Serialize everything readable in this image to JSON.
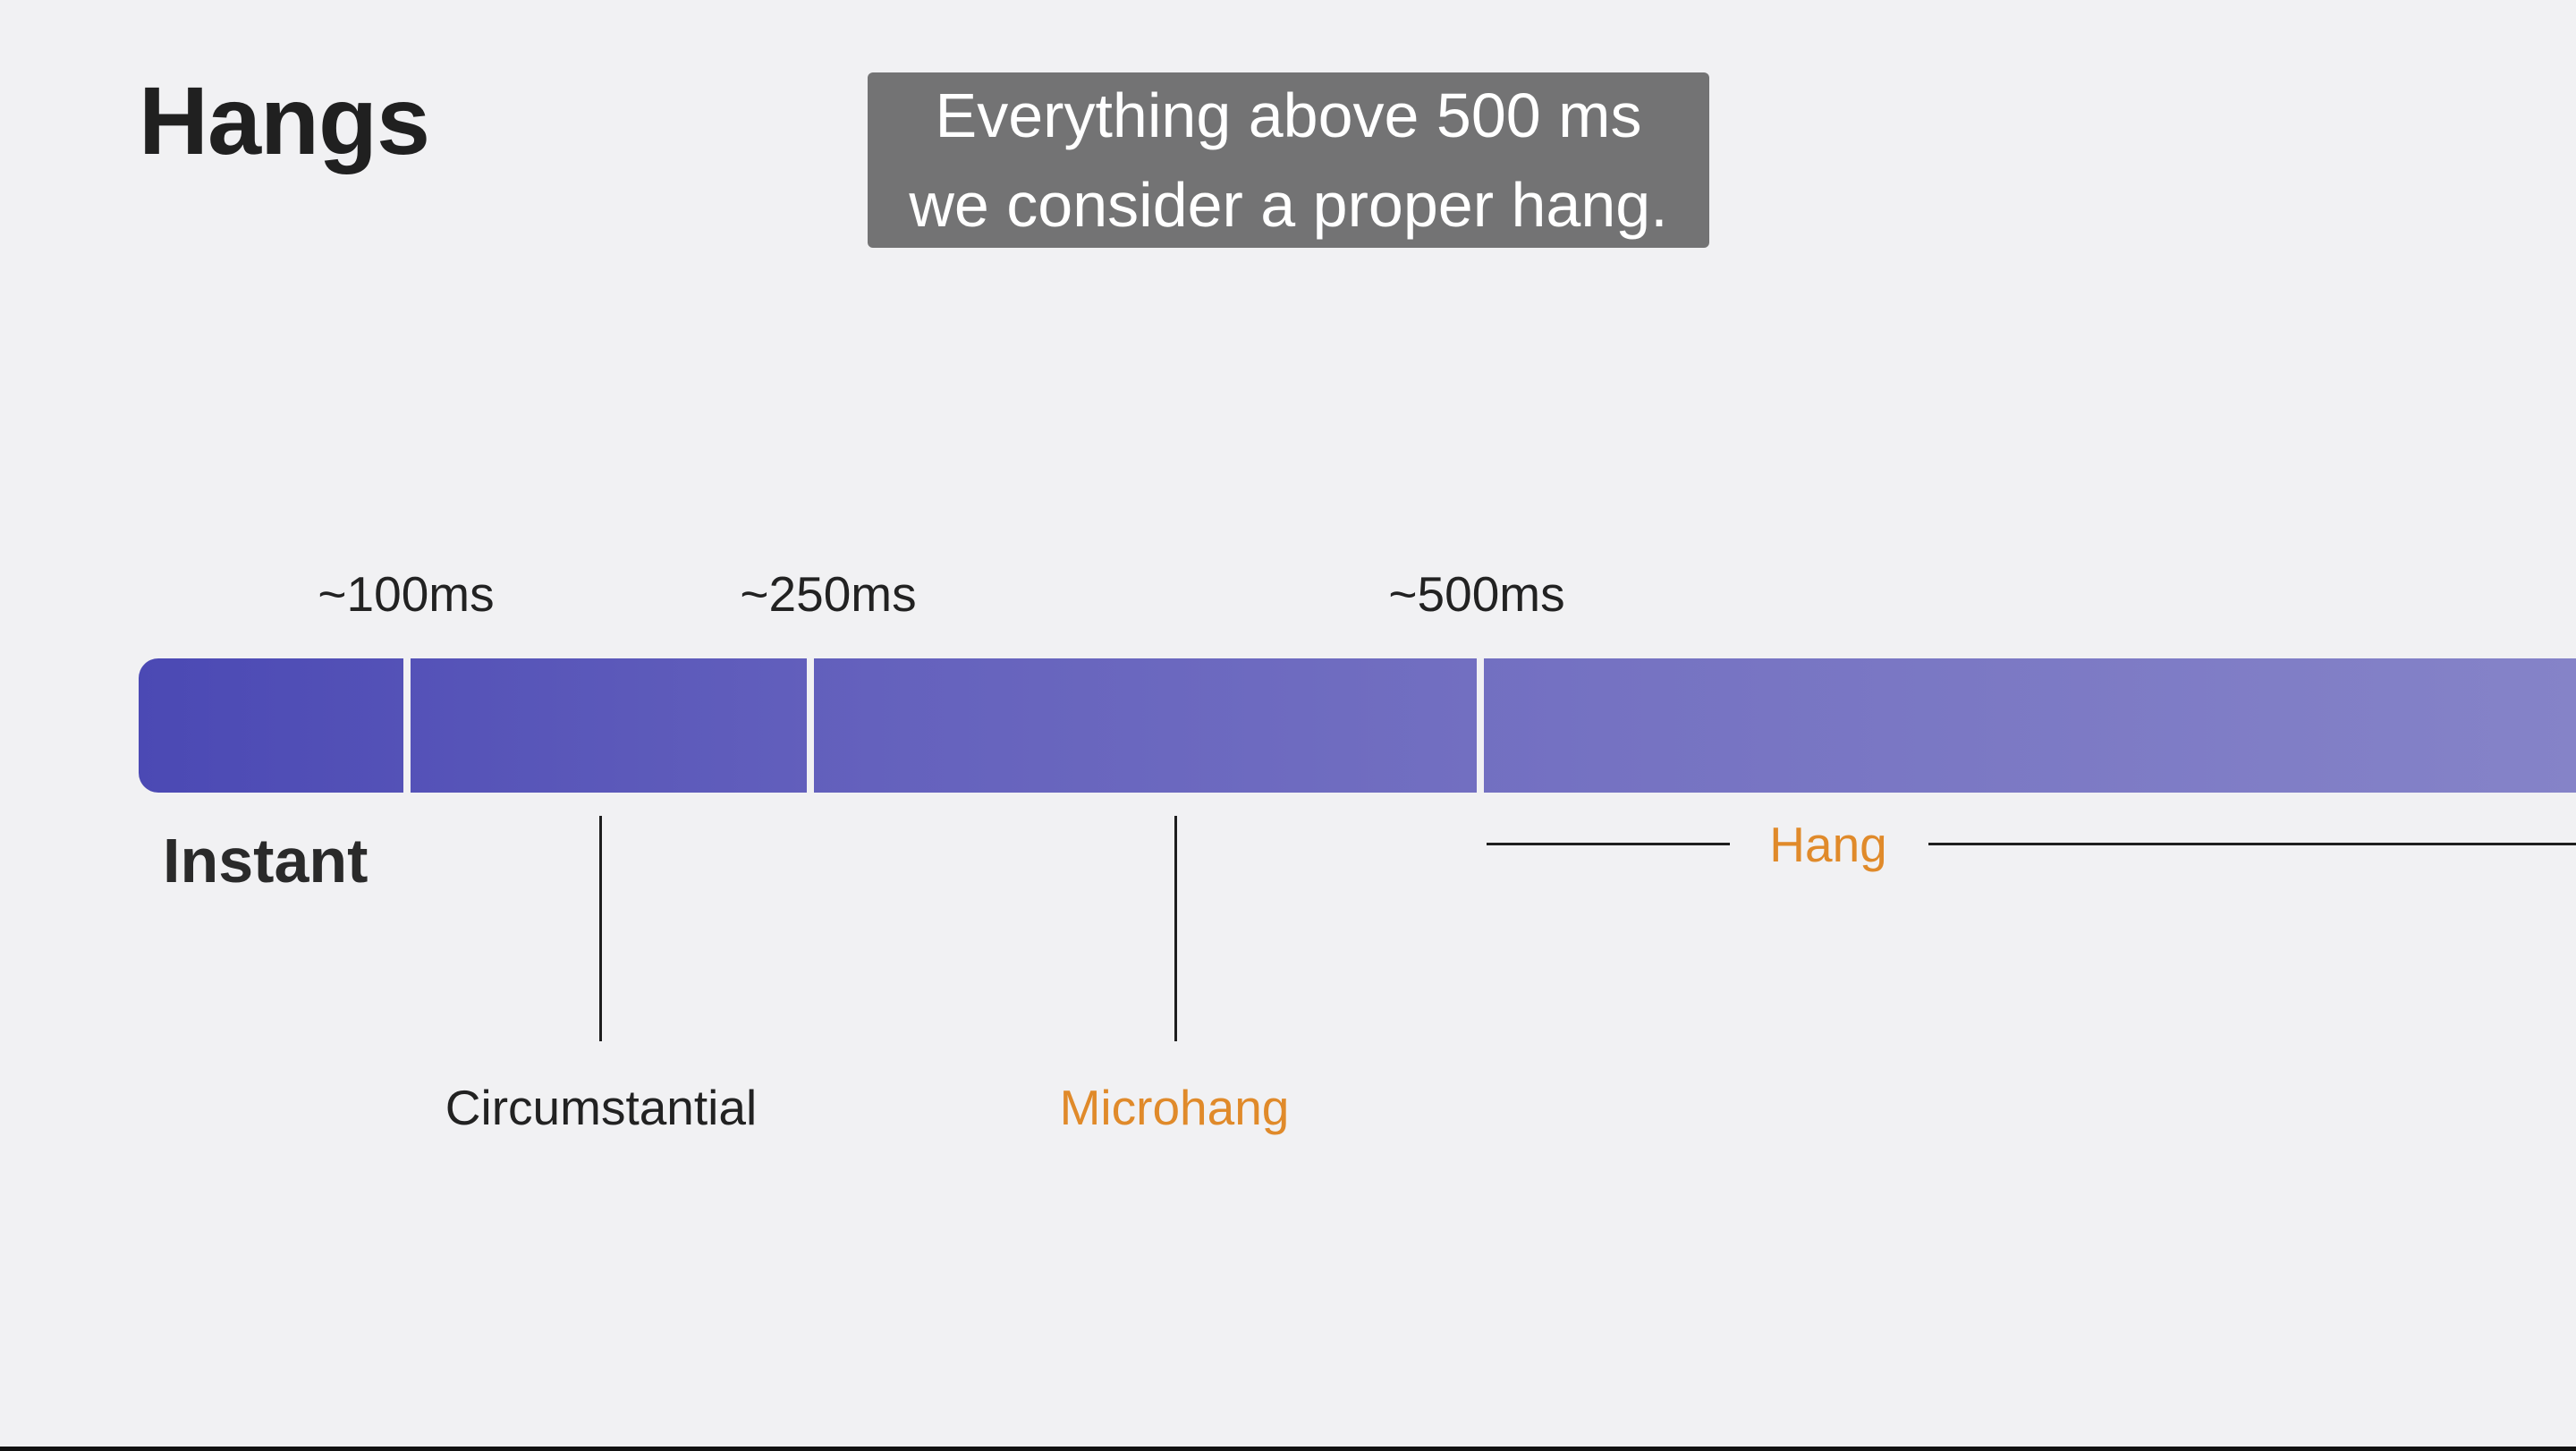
{
  "slide": {
    "title": "Hangs",
    "caption": {
      "line1": "Everything above 500 ms",
      "line2": "we consider a proper hang."
    }
  },
  "timeline": {
    "ticks": [
      {
        "label": "~100ms",
        "value_ms": 100
      },
      {
        "label": "~250ms",
        "value_ms": 250
      },
      {
        "label": "~500ms",
        "value_ms": 500
      }
    ],
    "categories": {
      "instant": "Instant",
      "circumstantial": "Circumstantial",
      "microhang": "Microhang",
      "hang": "Hang"
    }
  },
  "colors": {
    "bar_start": "#4b49b4",
    "bar_end": "#8583c8",
    "highlight": "#e08a2a",
    "caption_bg": "#737374",
    "background": "#f1f1f3"
  }
}
